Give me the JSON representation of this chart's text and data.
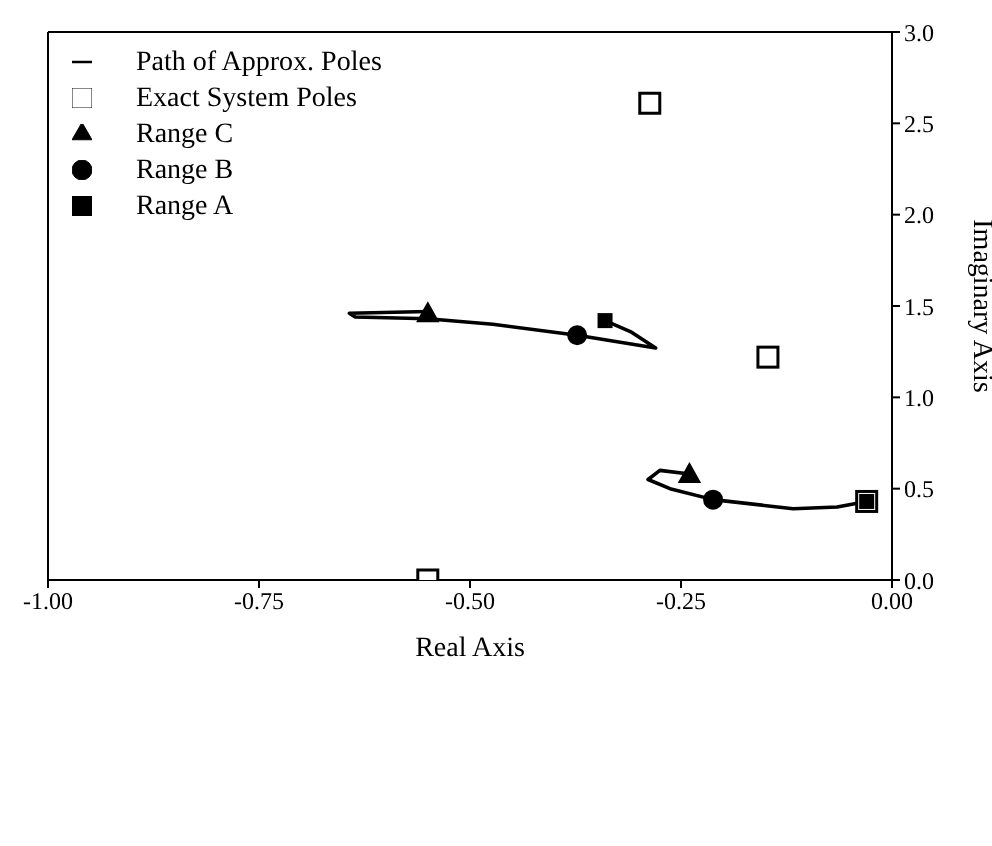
{
  "chart_data": {
    "type": "scatter",
    "xlabel": "Real Axis",
    "ylabel": "Imaginary Axis",
    "xlim": [
      -1,
      0
    ],
    "xticks": [
      {
        "value": -1,
        "label": "-1.00"
      },
      {
        "value": -0.75,
        "label": "-0.75"
      },
      {
        "value": -0.5,
        "label": "-0.50"
      },
      {
        "value": -0.25,
        "label": "-0.25"
      },
      {
        "value": 0,
        "label": "0.00"
      }
    ],
    "ylim": [
      0,
      3
    ],
    "yticks": [
      {
        "value": 0,
        "label": "0.0"
      },
      {
        "value": 0.5,
        "label": "0.5"
      },
      {
        "value": 1,
        "label": "1.0"
      },
      {
        "value": 1.5,
        "label": "1.5"
      },
      {
        "value": 2,
        "label": "2.0"
      },
      {
        "value": 2.5,
        "label": "2.5"
      },
      {
        "value": 3,
        "label": "3.0"
      }
    ],
    "grid": false,
    "legend": "top left",
    "series": [
      {
        "name": "Path of Approx. Poles",
        "type": "line",
        "marker": "none",
        "color": "#000000",
        "x": [
          -0.55,
          -0.643,
          -0.636,
          -0.55,
          -0.473,
          -0.373,
          -0.28,
          -0.31,
          -0.34
        ],
        "values": [
          1.47,
          1.46,
          1.44,
          1.43,
          1.4,
          1.34,
          1.27,
          1.36,
          1.42
        ]
      },
      {
        "type": "line",
        "marker": "none",
        "color": "#000000",
        "x": [
          -0.24,
          -0.275,
          -0.289,
          -0.263,
          -0.212,
          -0.117,
          -0.065,
          -0.03
        ],
        "values": [
          0.58,
          0.6,
          0.55,
          0.5,
          0.44,
          0.39,
          0.4,
          0.43
        ]
      },
      {
        "name": "Exact System Poles",
        "marker": "square",
        "color": "#ffffff",
        "x": [
          -0.287,
          -0.147,
          -0.03,
          -0.55
        ],
        "values": [
          2.61,
          1.22,
          0.43,
          0
        ]
      },
      {
        "name": "Range C",
        "marker": "triangle",
        "color": "#000000",
        "x": [
          -0.55,
          -0.24
        ],
        "values": [
          1.46,
          0.58
        ]
      },
      {
        "name": "Range B",
        "marker": "circle",
        "color": "#000000",
        "x": [
          -0.373,
          -0.212
        ],
        "values": [
          1.34,
          0.44
        ]
      },
      {
        "name": "Range A",
        "marker": "square",
        "color": "#000000",
        "x": [
          -0.34,
          -0.03
        ],
        "values": [
          1.42,
          0.43
        ]
      }
    ]
  }
}
